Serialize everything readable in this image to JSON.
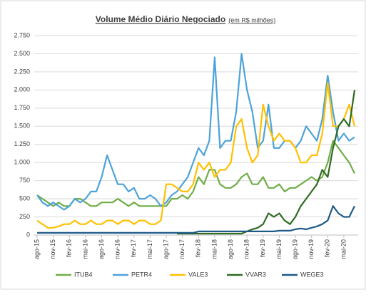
{
  "chart_data": {
    "type": "line",
    "title": "Volume Médio Diário Negociado",
    "subtitle": "(em R$ milhões)",
    "categories": [
      "ago-15",
      null,
      null,
      "nov-15",
      null,
      null,
      "fev-16",
      null,
      null,
      "mai-16",
      null,
      null,
      "ago-16",
      null,
      null,
      "nov-16",
      null,
      null,
      "fev-17",
      null,
      null,
      "mai-17",
      null,
      null,
      "ago-17",
      null,
      null,
      "nov-17",
      null,
      null,
      "fev-18",
      null,
      null,
      "mai-18",
      null,
      null,
      "ago-18",
      null,
      null,
      "nov-18",
      null,
      null,
      "fev-19",
      null,
      null,
      "mai-19",
      null,
      null,
      "ago-19",
      null,
      null,
      "nov-19",
      null,
      null,
      "fev-20",
      null,
      null,
      "mai-20",
      null,
      null
    ],
    "series": [
      {
        "name": "ITUB4",
        "color": "#70ad47",
        "values": [
          550,
          500,
          450,
          400,
          450,
          400,
          400,
          500,
          500,
          450,
          400,
          400,
          450,
          450,
          450,
          500,
          450,
          400,
          450,
          400,
          400,
          400,
          400,
          400,
          400,
          500,
          500,
          550,
          500,
          600,
          800,
          700,
          900,
          900,
          700,
          650,
          650,
          700,
          800,
          850,
          700,
          700,
          800,
          650,
          650,
          700,
          600,
          650,
          650,
          700,
          750,
          800,
          750,
          800,
          1000,
          1300,
          1200,
          1100,
          1000,
          850
        ]
      },
      {
        "name": "PETR4",
        "color": "#4da3d9",
        "values": [
          550,
          450,
          400,
          450,
          400,
          350,
          400,
          500,
          450,
          500,
          600,
          600,
          800,
          1100,
          900,
          700,
          700,
          600,
          650,
          500,
          500,
          550,
          500,
          400,
          450,
          550,
          600,
          700,
          800,
          1000,
          1200,
          1100,
          1300,
          2450,
          1200,
          1300,
          1300,
          1700,
          2500,
          2000,
          1700,
          1200,
          1300,
          1800,
          1200,
          1200,
          1300,
          1300,
          1200,
          1300,
          1500,
          1400,
          1300,
          1600,
          2200,
          1700,
          1300,
          1400,
          1300,
          1350
        ]
      },
      {
        "name": "VALE3",
        "color": "#ffc000",
        "values": [
          200,
          150,
          100,
          100,
          120,
          150,
          150,
          200,
          150,
          150,
          200,
          150,
          150,
          200,
          200,
          150,
          200,
          200,
          150,
          200,
          200,
          150,
          150,
          200,
          700,
          700,
          650,
          600,
          600,
          700,
          1000,
          900,
          1000,
          800,
          900,
          900,
          1000,
          1500,
          1600,
          1200,
          1000,
          1100,
          1800,
          1500,
          1300,
          1400,
          1300,
          1300,
          1200,
          1000,
          1000,
          1100,
          1100,
          1400,
          2100,
          1500,
          1500,
          1600,
          1800,
          1500
        ]
      },
      {
        "name": "VVAR3",
        "color": "#2f6b22",
        "values": [
          null,
          null,
          null,
          null,
          null,
          null,
          null,
          null,
          null,
          null,
          null,
          null,
          null,
          null,
          null,
          null,
          null,
          null,
          null,
          null,
          null,
          null,
          null,
          null,
          null,
          null,
          20,
          20,
          20,
          20,
          20,
          20,
          20,
          20,
          20,
          20,
          20,
          20,
          20,
          50,
          80,
          100,
          150,
          300,
          250,
          300,
          200,
          150,
          250,
          400,
          500,
          600,
          700,
          900,
          800,
          1200,
          1500,
          1600,
          1500,
          2000
        ]
      },
      {
        "name": "WEGE3",
        "color": "#1f5a88",
        "values": [
          30,
          30,
          30,
          30,
          30,
          30,
          30,
          30,
          30,
          30,
          30,
          30,
          30,
          30,
          30,
          30,
          30,
          30,
          30,
          30,
          30,
          30,
          30,
          30,
          30,
          30,
          30,
          30,
          30,
          30,
          50,
          50,
          50,
          50,
          50,
          50,
          50,
          50,
          50,
          50,
          50,
          50,
          50,
          50,
          50,
          60,
          60,
          60,
          80,
          90,
          80,
          100,
          120,
          150,
          200,
          400,
          300,
          250,
          250,
          400
        ]
      }
    ],
    "ylim": [
      0,
      2750
    ],
    "yticks": [
      0,
      250,
      500,
      750,
      {
        "value": 1000,
        "label": "1.000"
      },
      {
        "value": 1250,
        "label": "1.250"
      },
      {
        "value": 1500,
        "label": "1.500"
      },
      {
        "value": 1750,
        "label": "1.750"
      },
      {
        "value": 2000,
        "label": "2.000"
      },
      {
        "value": 2250,
        "label": "2.250"
      },
      {
        "value": 2500,
        "label": "2.500"
      },
      {
        "value": 2750,
        "label": "2.750"
      }
    ],
    "grid": true,
    "legend": "bottom"
  }
}
